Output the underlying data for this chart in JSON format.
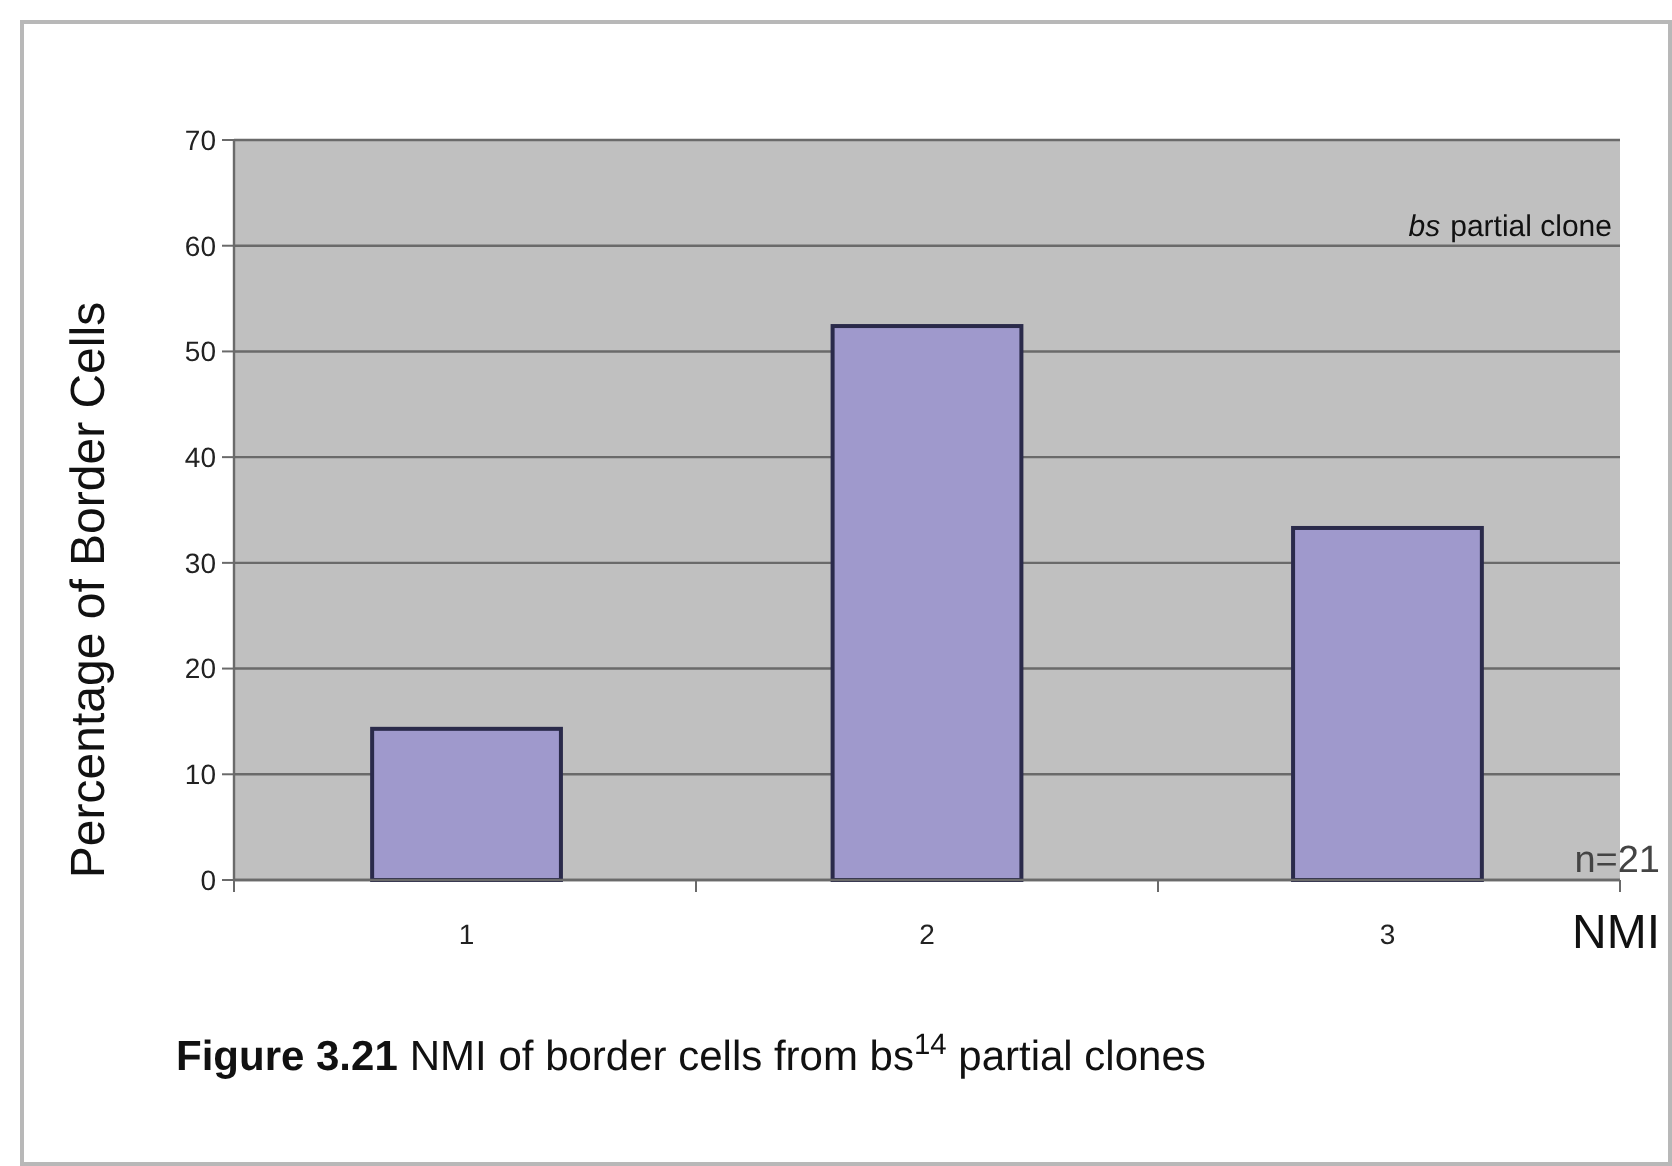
{
  "chart_data": {
    "type": "bar",
    "ylabel": "Percentage of Border Cells",
    "xlabel": "NMI",
    "categories": [
      "1",
      "2",
      "3"
    ],
    "values": [
      14.3,
      52.4,
      33.3
    ],
    "color": "#9f99cc",
    "ylim": [
      0,
      70
    ],
    "yticks": [
      0,
      10,
      20,
      30,
      40,
      50,
      60,
      70
    ],
    "grid": "y",
    "annotations": [
      "Figure 3.21",
      "NMI of border cells from bs$^{14}$ partial clones",
      "bs",
      "partial clone",
      "n=21"
    ]
  }
}
